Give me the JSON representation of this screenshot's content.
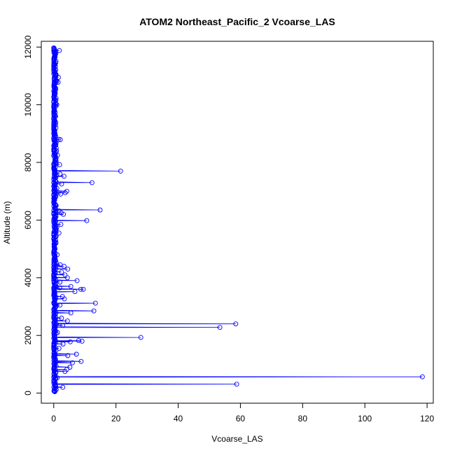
{
  "chart_data": {
    "type": "scatter",
    "title": "ATOM2 Northeast_Pacific_2 Vcoarse_LAS",
    "xlabel": "Vcoarse_LAS",
    "ylabel": "Altitude (m)",
    "xlim": [
      -4,
      122
    ],
    "ylim": [
      -350,
      12200
    ],
    "xticks": [
      0,
      20,
      40,
      60,
      80,
      100,
      120
    ],
    "yticks": [
      0,
      2000,
      4000,
      6000,
      8000,
      10000,
      12000
    ],
    "grid": false,
    "legend": "none",
    "line_color": "#0000ff",
    "marker_color": "#0000ff",
    "series": [
      {
        "points": [
          [
            0.1,
            11950
          ],
          [
            0.2,
            11900
          ],
          [
            1.8,
            11880
          ],
          [
            0.1,
            11800
          ],
          [
            0.3,
            11600
          ],
          [
            0.2,
            11400
          ],
          [
            0.6,
            11200
          ],
          [
            0.4,
            11050
          ],
          [
            1.5,
            10950
          ],
          [
            0.9,
            10800
          ],
          [
            1.4,
            10780
          ],
          [
            0.3,
            10600
          ],
          [
            0.5,
            10400
          ],
          [
            0.2,
            10200
          ],
          [
            1.0,
            10000
          ],
          [
            0.3,
            9800
          ],
          [
            0.6,
            9600
          ],
          [
            0.2,
            9400
          ],
          [
            0.7,
            9200
          ],
          [
            0.4,
            9000
          ],
          [
            1.5,
            8800
          ],
          [
            2.1,
            8790
          ],
          [
            0.3,
            8750
          ],
          [
            0.5,
            8600
          ],
          [
            0.9,
            8400
          ],
          [
            1.2,
            8250
          ],
          [
            0.4,
            8100
          ],
          [
            1.9,
            7920
          ],
          [
            0.3,
            7750
          ],
          [
            21.5,
            7700
          ],
          [
            0.5,
            7650
          ],
          [
            2.0,
            7600
          ],
          [
            3.3,
            7520
          ],
          [
            0.4,
            7450
          ],
          [
            12.3,
            7300
          ],
          [
            2.5,
            7250
          ],
          [
            0.5,
            7200
          ],
          [
            1.0,
            7100
          ],
          [
            4.2,
            7000
          ],
          [
            3.7,
            6950
          ],
          [
            2.2,
            6900
          ],
          [
            0.6,
            6800
          ],
          [
            0.3,
            6700
          ],
          [
            0.8,
            6500
          ],
          [
            14.9,
            6350
          ],
          [
            1.7,
            6320
          ],
          [
            2.4,
            6250
          ],
          [
            3.1,
            6200
          ],
          [
            0.3,
            6100
          ],
          [
            10.6,
            5980
          ],
          [
            2.3,
            5850
          ],
          [
            1.0,
            5750
          ],
          [
            1.7,
            5550
          ],
          [
            0.5,
            5400
          ],
          [
            0.3,
            5200
          ],
          [
            0.4,
            5000
          ],
          [
            1.1,
            4800
          ],
          [
            0.6,
            4600
          ],
          [
            2.1,
            4450
          ],
          [
            3.3,
            4400
          ],
          [
            4.5,
            4300
          ],
          [
            2.5,
            4200
          ],
          [
            3.6,
            4100
          ],
          [
            4.4,
            4000
          ],
          [
            7.5,
            3900
          ],
          [
            2.0,
            3850
          ],
          [
            5.5,
            3700
          ],
          [
            1.9,
            3650
          ],
          [
            8.7,
            3600
          ],
          [
            9.5,
            3600
          ],
          [
            6.8,
            3520
          ],
          [
            2.8,
            3350
          ],
          [
            3.4,
            3270
          ],
          [
            13.4,
            3120
          ],
          [
            2.0,
            3050
          ],
          [
            12.9,
            2850
          ],
          [
            5.5,
            2780
          ],
          [
            2.5,
            2600
          ],
          [
            4.4,
            2500
          ],
          [
            58.5,
            2400
          ],
          [
            2.9,
            2350
          ],
          [
            53.4,
            2280
          ],
          [
            1.2,
            2100
          ],
          [
            28.0,
            1930
          ],
          [
            8.0,
            1820
          ],
          [
            9.1,
            1800
          ],
          [
            5.3,
            1780
          ],
          [
            3.0,
            1700
          ],
          [
            1.7,
            1550
          ],
          [
            7.3,
            1350
          ],
          [
            4.5,
            1300
          ],
          [
            8.8,
            1100
          ],
          [
            6.0,
            1050
          ],
          [
            5.2,
            900
          ],
          [
            4.2,
            820
          ],
          [
            3.6,
            750
          ],
          [
            118.5,
            565
          ],
          [
            1.1,
            530
          ],
          [
            58.8,
            310
          ],
          [
            2.9,
            200
          ],
          [
            0.8,
            120
          ],
          [
            0.2,
            60
          ]
        ],
        "dense_trace": {
          "altitude_range": [
            50,
            11980
          ],
          "step": 25,
          "x_range_near_zero": [
            0.0,
            1.6
          ]
        }
      }
    ]
  }
}
